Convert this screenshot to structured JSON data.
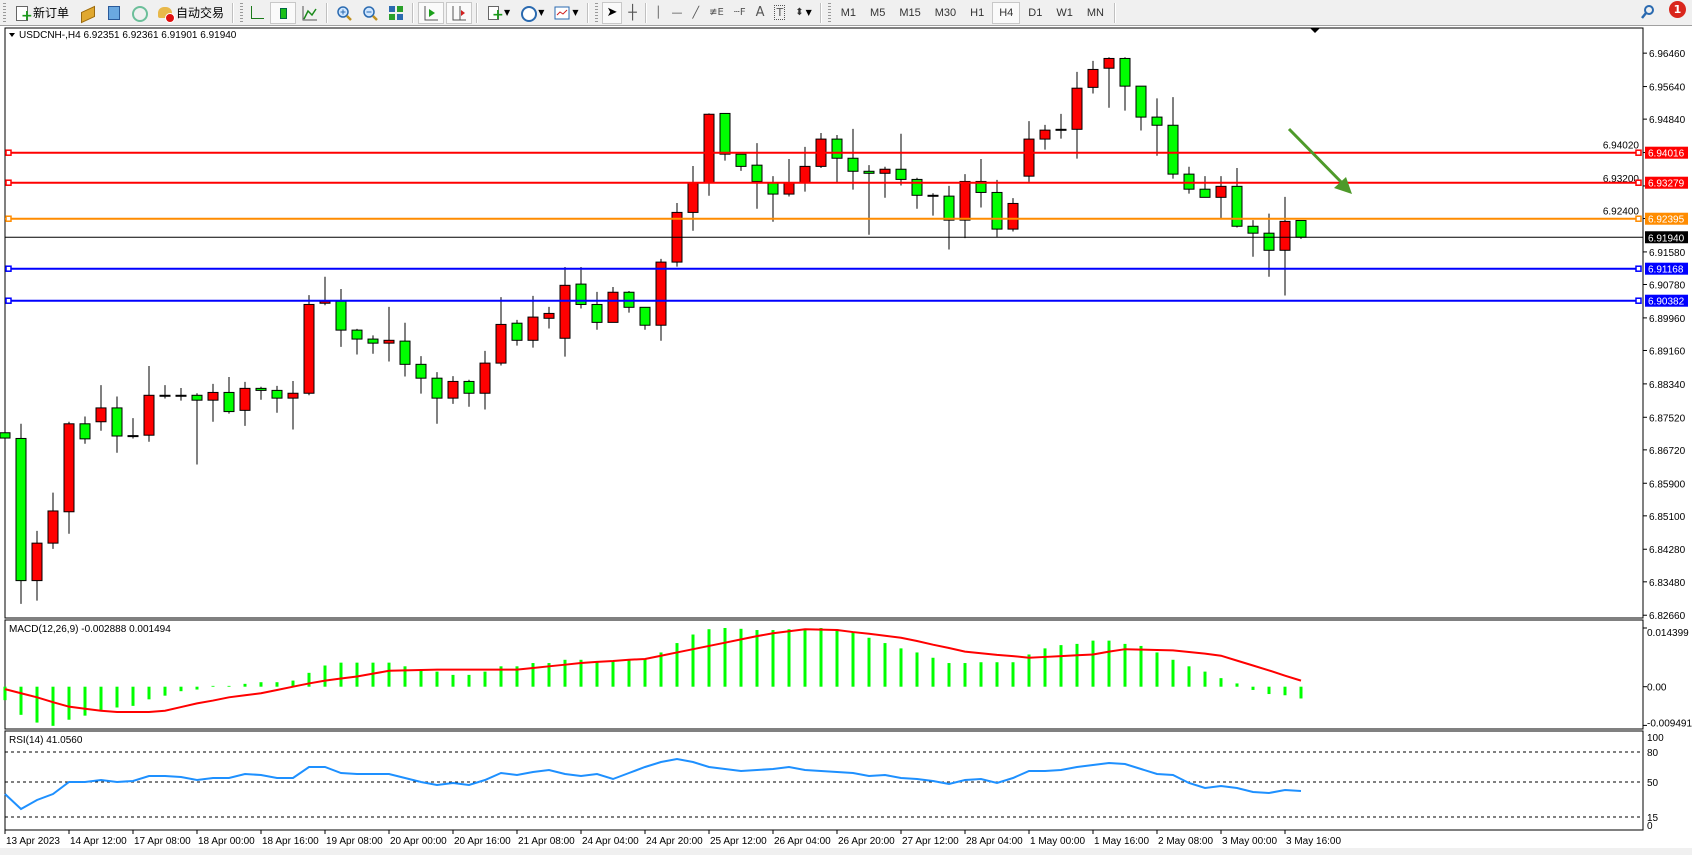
{
  "toolbar": {
    "new_order": "新订单",
    "auto_trading": "自动交易",
    "timeframes": [
      "M1",
      "M5",
      "M15",
      "M30",
      "H1",
      "H4",
      "D1",
      "W1",
      "MN"
    ],
    "active_timeframe": "H4",
    "notification_count": "1"
  },
  "chart": {
    "header": "USDCNH-,H4  6.92351 6.92361 6.91901 6.91940",
    "symbol": "USDCNH-",
    "timeframe": "H4",
    "bull_color": "#ff0000",
    "bear_color": "#00ff00",
    "price_ticks": [
      "6.96460",
      "6.95640",
      "6.94840",
      "6.94020",
      "6.93200",
      "6.92400",
      "6.91580",
      "6.90780",
      "6.89960",
      "6.89160",
      "6.88340",
      "6.87520",
      "6.86720",
      "6.85900",
      "6.85100",
      "6.84280",
      "6.83480",
      "6.82660"
    ],
    "current_price": "6.91940",
    "hlines": [
      {
        "price": "6.94016",
        "color": "#ff0000"
      },
      {
        "price": "6.93279",
        "color": "#ff0000"
      },
      {
        "price": "6.92395",
        "color": "#ff8c00"
      },
      {
        "price": "6.91168",
        "color": "#0000ff"
      },
      {
        "price": "6.90382",
        "color": "#0000ff"
      }
    ],
    "arrow_color": "#4e9a2a",
    "time_labels": [
      "13 Apr 2023",
      "14 Apr 12:00",
      "17 Apr 08:00",
      "18 Apr 00:00",
      "18 Apr 16:00",
      "19 Apr 08:00",
      "20 Apr 00:00",
      "20 Apr 16:00",
      "21 Apr 08:00",
      "24 Apr 04:00",
      "24 Apr 20:00",
      "25 Apr 12:00",
      "26 Apr 04:00",
      "26 Apr 20:00",
      "27 Apr 12:00",
      "28 Apr 04:00",
      "1 May 00:00",
      "1 May 16:00",
      "2 May 08:00",
      "3 May 00:00",
      "3 May 16:00"
    ],
    "time_label_every": 4
  },
  "chart_data": {
    "type": "candlestick",
    "ohlc": [
      [
        6.8714,
        6.8721,
        6.8684,
        6.8701
      ],
      [
        6.87,
        6.8736,
        6.8294,
        6.8351
      ],
      [
        6.8351,
        6.8473,
        6.8302,
        6.8443
      ],
      [
        6.8443,
        6.8567,
        6.8429,
        6.8522
      ],
      [
        6.852,
        6.8741,
        6.8466,
        6.8736
      ],
      [
        6.8736,
        6.8754,
        6.8687,
        6.8699
      ],
      [
        6.8741,
        6.8831,
        6.8719,
        6.8775
      ],
      [
        6.8775,
        6.8803,
        6.8665,
        6.8706
      ],
      [
        6.8706,
        6.875,
        6.87,
        6.8707
      ],
      [
        6.8708,
        6.8878,
        6.8692,
        6.8806
      ],
      [
        6.8806,
        6.8831,
        6.8798,
        6.8806
      ],
      [
        6.8806,
        6.8824,
        6.8793,
        6.8806
      ],
      [
        6.8806,
        6.8811,
        6.8636,
        6.8794
      ],
      [
        6.8794,
        6.8834,
        6.8741,
        6.8813
      ],
      [
        6.8813,
        6.8851,
        6.8761,
        6.8766
      ],
      [
        6.8769,
        6.8839,
        6.8731,
        6.8823
      ],
      [
        6.8823,
        6.8827,
        6.8795,
        6.8818
      ],
      [
        6.8818,
        6.8829,
        6.8763,
        6.8799
      ],
      [
        6.8799,
        6.8841,
        6.8722,
        6.8811
      ],
      [
        6.8811,
        6.9052,
        6.8806,
        6.9029
      ],
      [
        6.9032,
        6.9097,
        6.9027,
        6.9037
      ],
      [
        6.9037,
        6.9067,
        6.8925,
        6.8966
      ],
      [
        6.8966,
        6.8969,
        6.8906,
        6.8944
      ],
      [
        6.8944,
        6.8953,
        6.8908,
        6.8934
      ],
      [
        6.8934,
        6.9023,
        6.8889,
        6.8941
      ],
      [
        6.8939,
        6.8984,
        6.8852,
        6.8882
      ],
      [
        6.8882,
        6.8902,
        6.881,
        6.8848
      ],
      [
        6.8848,
        6.8863,
        6.8736,
        6.8799
      ],
      [
        6.8799,
        6.8853,
        6.8785,
        6.884
      ],
      [
        6.884,
        6.8844,
        6.8778,
        6.8811
      ],
      [
        6.8811,
        6.8915,
        6.8771,
        6.8885
      ],
      [
        6.8885,
        6.9047,
        6.8879,
        6.898
      ],
      [
        6.8983,
        6.8991,
        6.8928,
        6.8941
      ],
      [
        6.8941,
        6.905,
        6.8923,
        6.8998
      ],
      [
        6.8995,
        6.9023,
        6.897,
        6.9007
      ],
      [
        6.8946,
        6.9121,
        6.8901,
        6.9076
      ],
      [
        6.9079,
        6.9121,
        6.9019,
        6.9029
      ],
      [
        6.9029,
        6.906,
        6.8967,
        6.8985
      ],
      [
        6.8985,
        6.9072,
        6.8985,
        6.9059
      ],
      [
        6.9059,
        6.9062,
        6.9009,
        6.9022
      ],
      [
        6.9022,
        6.9022,
        6.8967,
        6.8978
      ],
      [
        6.8978,
        6.9141,
        6.894,
        6.9133
      ],
      [
        6.9133,
        6.9278,
        6.9122,
        6.9255
      ],
      [
        6.9255,
        6.9369,
        6.921,
        6.9328
      ],
      [
        6.9328,
        6.9498,
        6.9296,
        6.9496
      ],
      [
        6.9498,
        6.9498,
        6.9382,
        6.9398
      ],
      [
        6.9398,
        6.9398,
        6.9357,
        6.9368
      ],
      [
        6.9371,
        6.9425,
        6.9264,
        6.9331
      ],
      [
        6.9328,
        6.9344,
        6.9232,
        6.93
      ],
      [
        6.93,
        6.9386,
        6.9294,
        6.9328
      ],
      [
        6.9328,
        6.9416,
        6.9306,
        6.9368
      ],
      [
        6.9368,
        6.945,
        6.9364,
        6.9435
      ],
      [
        6.9435,
        6.9445,
        6.9328,
        6.9388
      ],
      [
        6.9388,
        6.946,
        6.9311,
        6.9356
      ],
      [
        6.9356,
        6.9371,
        6.92,
        6.9351
      ],
      [
        6.9351,
        6.9367,
        6.9291,
        6.9361
      ],
      [
        6.9361,
        6.9448,
        6.9321,
        6.9336
      ],
      [
        6.9336,
        6.934,
        6.9264,
        6.9297
      ],
      [
        6.9297,
        6.9302,
        6.9247,
        6.9296
      ],
      [
        6.9295,
        6.932,
        6.9164,
        6.9236
      ],
      [
        6.9236,
        6.9349,
        6.9192,
        6.9331
      ],
      [
        6.9331,
        6.9386,
        6.9267,
        6.9304
      ],
      [
        6.9304,
        6.9335,
        6.9195,
        6.9214
      ],
      [
        6.9214,
        6.929,
        6.9208,
        6.9277
      ],
      [
        6.9344,
        6.9479,
        6.933,
        6.9435
      ],
      [
        6.9435,
        6.947,
        6.9409,
        6.9457
      ],
      [
        6.9457,
        6.9497,
        6.9436,
        6.9459
      ],
      [
        6.9459,
        6.96,
        6.9387,
        6.956
      ],
      [
        6.9562,
        6.9627,
        6.9547,
        6.9606
      ],
      [
        6.9609,
        6.9636,
        6.9512,
        6.9633
      ],
      [
        6.9633,
        6.9636,
        6.9505,
        6.9565
      ],
      [
        6.9565,
        6.9565,
        6.9456,
        6.9489
      ],
      [
        6.9489,
        6.9535,
        6.9394,
        6.9469
      ],
      [
        6.9469,
        6.9538,
        6.9338,
        6.9349
      ],
      [
        6.9349,
        6.9367,
        6.9301,
        6.9312
      ],
      [
        6.9312,
        6.9344,
        6.9292,
        6.9292
      ],
      [
        6.9292,
        6.9344,
        6.9241,
        6.9319
      ],
      [
        6.9319,
        6.9364,
        6.9218,
        6.9221
      ],
      [
        6.9221,
        6.9236,
        6.9146,
        6.9204
      ],
      [
        6.9204,
        6.9252,
        6.9097,
        6.9162
      ],
      [
        6.9162,
        6.9293,
        6.9051,
        6.9233
      ],
      [
        6.92351,
        6.92361,
        6.91901,
        6.9194
      ]
    ],
    "ylim": [
      6.8266,
      6.9646
    ],
    "macd": {
      "label": "MACD(12,26,9) -0.002888 0.001494",
      "ticks": [
        "0.014399",
        "0.00",
        "-0.009491"
      ],
      "histogram_color": "#00ff00",
      "signal_color": "#ff0000",
      "histogram": [
        -0.0033,
        -0.0069,
        -0.0088,
        -0.0096,
        -0.0081,
        -0.0071,
        -0.0057,
        -0.0051,
        -0.0047,
        -0.0031,
        -0.0022,
        -0.0011,
        -0.0007,
        0.0002,
        0.0002,
        0.0007,
        0.0011,
        0.0011,
        0.0015,
        0.0034,
        0.0052,
        0.0059,
        0.0059,
        0.0059,
        0.0059,
        0.005,
        0.0042,
        0.0037,
        0.0029,
        0.0029,
        0.0037,
        0.005,
        0.005,
        0.0058,
        0.0058,
        0.0066,
        0.0066,
        0.0063,
        0.0063,
        0.0066,
        0.0068,
        0.0084,
        0.0107,
        0.0128,
        0.0141,
        0.0144,
        0.0142,
        0.0139,
        0.0139,
        0.0141,
        0.0142,
        0.0144,
        0.0141,
        0.0134,
        0.012,
        0.0107,
        0.0094,
        0.0084,
        0.0071,
        0.0058,
        0.0058,
        0.006,
        0.006,
        0.006,
        0.0079,
        0.0094,
        0.0102,
        0.0105,
        0.0113,
        0.0113,
        0.0105,
        0.01,
        0.0084,
        0.0066,
        0.005,
        0.0037,
        0.0021,
        0.0008,
        -0.0008,
        -0.0018,
        -0.0021,
        -0.002888
      ],
      "signal": [
        -0.0006,
        -0.0016,
        -0.0026,
        -0.0038,
        -0.0049,
        -0.0054,
        -0.0059,
        -0.0062,
        -0.0062,
        -0.0062,
        -0.0059,
        -0.005,
        -0.0041,
        -0.0034,
        -0.0026,
        -0.0021,
        -0.0016,
        -0.0008,
        0.0,
        0.0008,
        0.0015,
        0.002,
        0.0025,
        0.0032,
        0.0039,
        0.004,
        0.0041,
        0.0042,
        0.0042,
        0.0042,
        0.0042,
        0.0042,
        0.0042,
        0.0046,
        0.005,
        0.0054,
        0.0058,
        0.0061,
        0.0063,
        0.0066,
        0.0068,
        0.0076,
        0.0084,
        0.0092,
        0.01,
        0.0108,
        0.0116,
        0.0124,
        0.0131,
        0.0136,
        0.0141,
        0.014,
        0.0139,
        0.0134,
        0.013,
        0.0125,
        0.012,
        0.0112,
        0.0103,
        0.0095,
        0.0086,
        0.0082,
        0.0078,
        0.0075,
        0.0071,
        0.0073,
        0.0075,
        0.0077,
        0.0079,
        0.0086,
        0.0092,
        0.0091,
        0.009,
        0.0089,
        0.0085,
        0.0081,
        0.0076,
        0.0064,
        0.0052,
        0.004,
        0.0027,
        0.001494
      ]
    },
    "rsi": {
      "label": "RSI(14) 41.0560",
      "ticks": [
        "100",
        "80",
        "50",
        "15",
        "0"
      ],
      "levels": [
        80,
        50,
        15
      ],
      "color": "#1e90ff",
      "values": [
        38,
        23,
        32,
        38,
        50,
        50,
        52,
        50,
        51,
        56,
        56,
        55,
        52,
        54,
        54,
        58,
        57,
        54,
        54,
        65,
        65,
        59,
        58,
        58,
        58,
        54,
        50,
        47,
        49,
        47,
        52,
        59,
        57,
        60,
        62,
        58,
        56,
        58,
        53,
        59,
        65,
        70,
        73,
        70,
        65,
        63,
        61,
        62,
        63,
        65,
        62,
        61,
        60,
        59,
        56,
        57,
        54,
        53,
        51,
        48,
        52,
        53,
        49,
        54,
        61,
        61,
        62,
        65,
        67,
        69,
        68,
        63,
        58,
        57,
        49,
        44,
        46,
        44,
        40,
        39,
        42,
        41.056
      ]
    }
  }
}
